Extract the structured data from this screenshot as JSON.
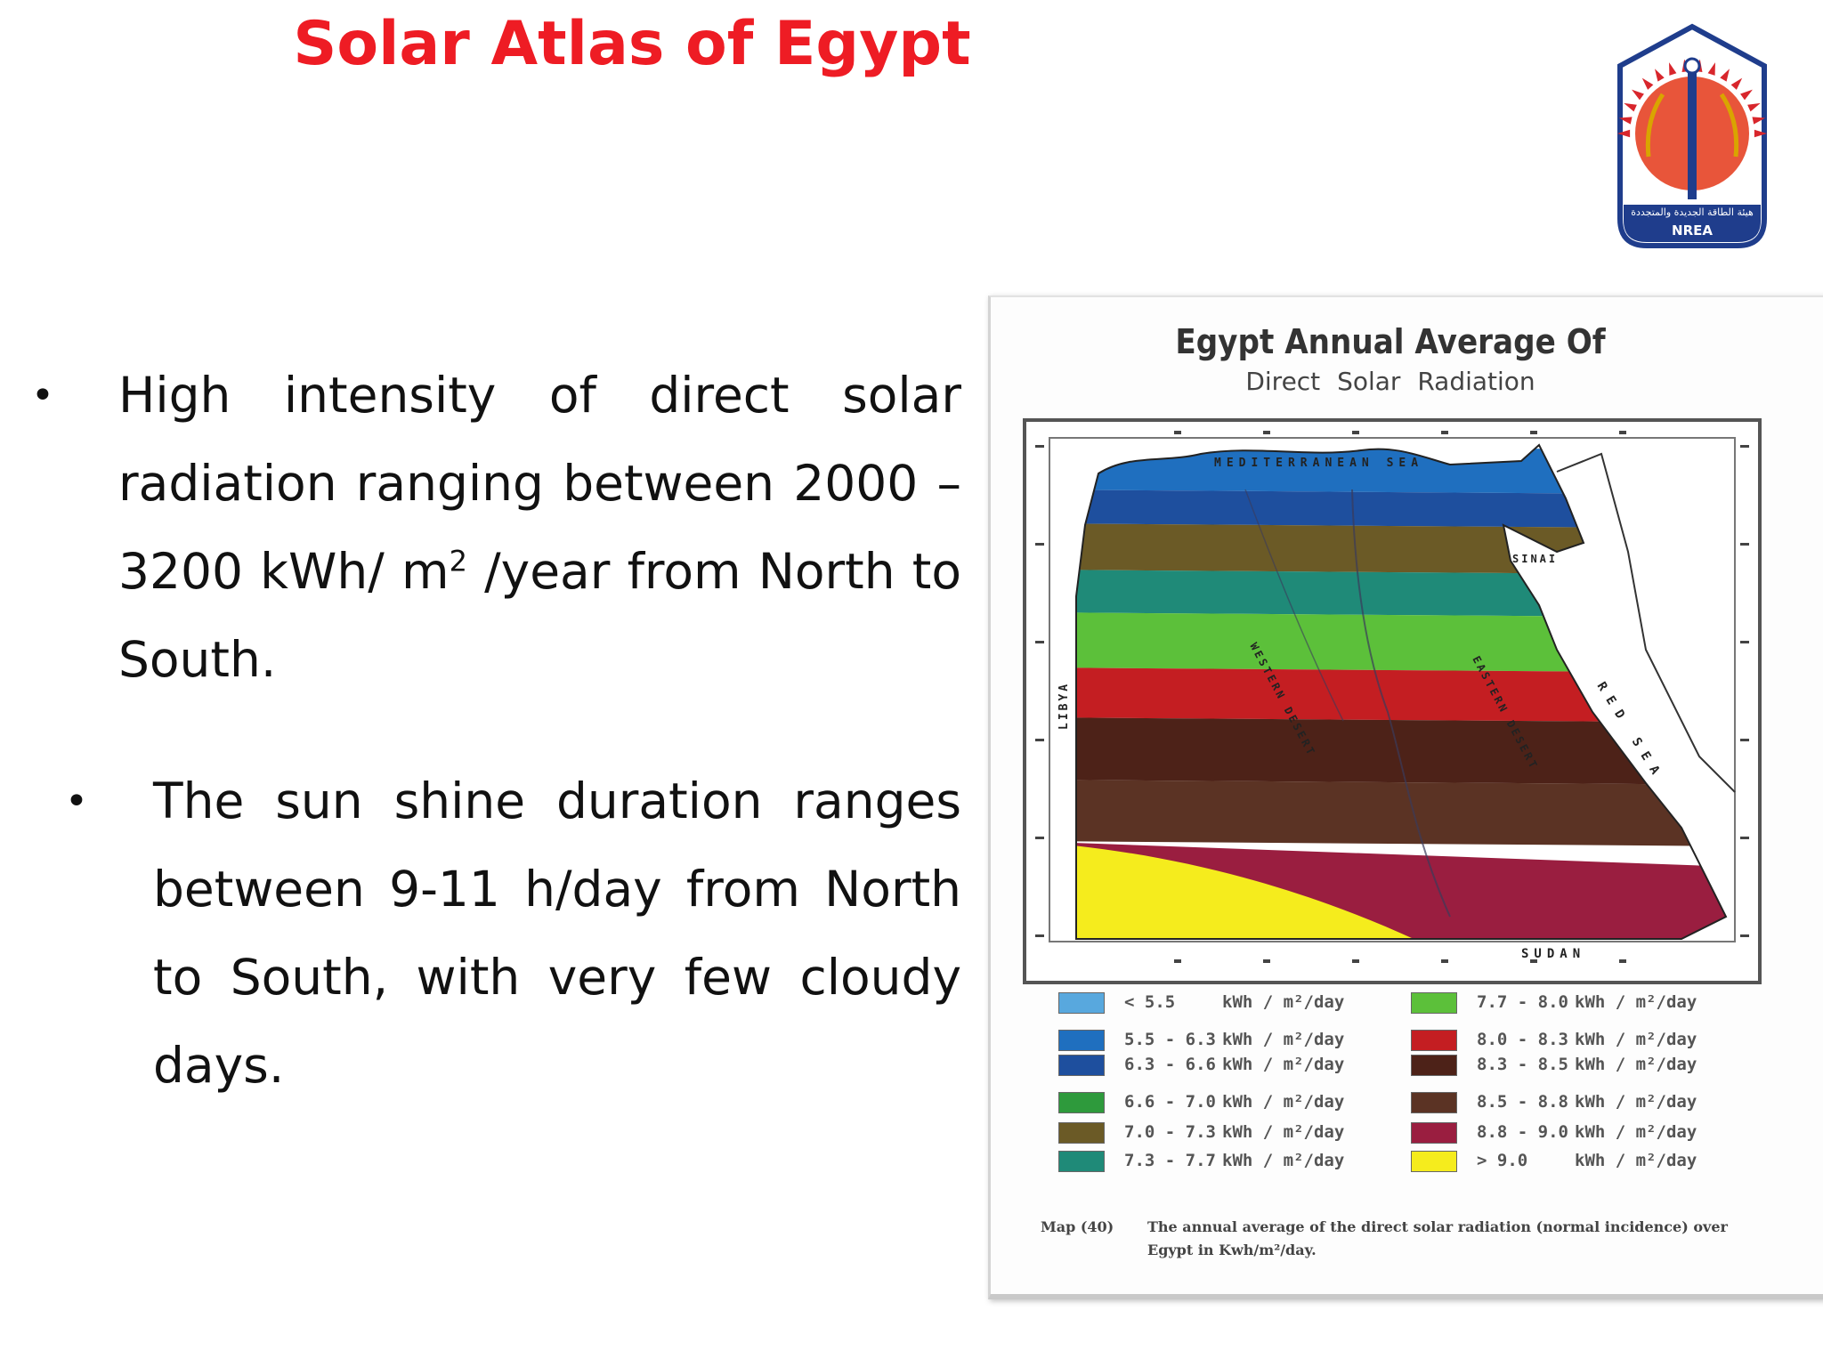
{
  "slide": {
    "title": "Solar Atlas of Egypt",
    "bullets": [
      {
        "before": "High intensity of direct solar radiation ranging between 2000 – 3200 kWh/ m",
        "sup": "2",
        "after": " /year from North to South."
      },
      {
        "before": "The sun shine duration ranges between 9-11 h/day from North to South, with very few cloudy days.",
        "sup": "",
        "after": ""
      }
    ],
    "bullet_symbol": "•"
  },
  "logo": {
    "arabic_text": "هيئة الطاقة الجديدة والمتجددة",
    "label": "NREA",
    "colors": {
      "frame": "#1f3d8c",
      "sun": "#e8553a",
      "rays": "#d8262c"
    }
  },
  "figure": {
    "title": "Egypt Annual Average Of",
    "subtitle": "Direct Solar Radiation",
    "map_labels": {
      "sea_north": "MEDITERRANEAN SEA",
      "sea_east": "RED SEA",
      "west": "LIBYA",
      "south": "SUDAN",
      "sinai": "SINAI",
      "western_desert": "WESTERN DESERT",
      "eastern_desert": "EASTERN DESERT"
    },
    "legend": [
      {
        "range": "< 5.5",
        "unit": "kWh / m²/day",
        "color": "#58a8de"
      },
      {
        "range": "5.5 - 6.3",
        "unit": "kWh / m²/day",
        "color": "#1f6fbf"
      },
      {
        "range": "6.3 - 6.6",
        "unit": "kWh / m²/day",
        "color": "#1e4f9e"
      },
      {
        "range": "6.6 - 7.0",
        "unit": "kWh / m²/day",
        "color": "#2e9a3c"
      },
      {
        "range": "7.0 - 7.3",
        "unit": "kWh / m²/day",
        "color": "#6b5a26"
      },
      {
        "range": "7.3 - 7.7",
        "unit": "kWh / m²/day",
        "color": "#1f8a78"
      },
      {
        "range": "7.7 - 8.0",
        "unit": "kWh / m²/day",
        "color": "#5cc03a"
      },
      {
        "range": "8.0 - 8.3",
        "unit": "kWh / m²/day",
        "color": "#c41e22"
      },
      {
        "range": "8.3 - 8.5",
        "unit": "kWh / m²/day",
        "color": "#4d2218"
      },
      {
        "range": "8.5 - 8.8",
        "unit": "kWh / m²/day",
        "color": "#5b3324"
      },
      {
        "range": "8.8 - 9.0",
        "unit": "kWh / m²/day",
        "color": "#9a1e40"
      },
      {
        "range": "> 9.0",
        "unit": "kWh / m²/day",
        "color": "#f5ec1d"
      }
    ],
    "caption_ref": "Map (40)",
    "caption_text": "The annual average of the direct solar radiation (normal incidence) over Egypt in Kwh/m²/day."
  }
}
